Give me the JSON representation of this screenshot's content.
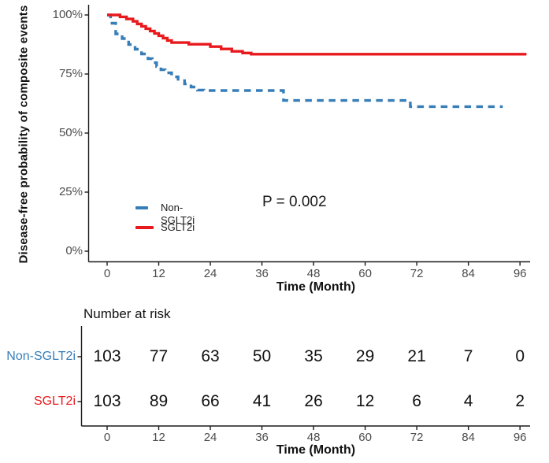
{
  "chart_data": {
    "type": "line",
    "subtype": "kaplan-meier-step",
    "title": "",
    "ylabel": "Disease-free probability of composite events",
    "xlabel": "Time (Month)",
    "annotation": "P = 0.002",
    "xlim": [
      0,
      96
    ],
    "ylim": [
      0,
      100
    ],
    "x_ticks": [
      0,
      12,
      24,
      36,
      48,
      60,
      72,
      84,
      96
    ],
    "y_tick_values": [
      100,
      75,
      50,
      25,
      0
    ],
    "y_tick_labels": [
      "100%",
      "75%",
      "50%",
      "25%",
      "0%"
    ],
    "grid": "off",
    "legend_position": "inside-bottom-left",
    "series": [
      {
        "name": "Non-SGLT2i",
        "color": "#377EB8",
        "line_style": "dashed",
        "steps": [
          [
            0,
            100
          ],
          [
            0.8,
            96.5
          ],
          [
            2,
            92
          ],
          [
            3.5,
            90
          ],
          [
            5,
            87.5
          ],
          [
            6.5,
            85.5
          ],
          [
            8,
            83.5
          ],
          [
            9.5,
            81.5
          ],
          [
            10.5,
            79.8
          ],
          [
            11.5,
            78.2
          ],
          [
            12.5,
            76.8
          ],
          [
            13.5,
            75.5
          ],
          [
            15,
            73.8
          ],
          [
            16.5,
            72.2
          ],
          [
            18,
            70.8
          ],
          [
            19.5,
            69.5
          ],
          [
            21,
            68.2
          ],
          [
            22.5,
            68
          ],
          [
            41,
            63.8
          ],
          [
            70.5,
            61.2
          ],
          [
            92,
            61.2
          ]
        ]
      },
      {
        "name": "SGLT2i",
        "color": "#E8191C",
        "line_style": "solid",
        "steps": [
          [
            0,
            100
          ],
          [
            3,
            99.2
          ],
          [
            4.5,
            98.3
          ],
          [
            6,
            97.3
          ],
          [
            7,
            96.2
          ],
          [
            8,
            95.2
          ],
          [
            9,
            94.2
          ],
          [
            10,
            93.2
          ],
          [
            11,
            92.2
          ],
          [
            12,
            91.2
          ],
          [
            13,
            90.2
          ],
          [
            14,
            89.2
          ],
          [
            15,
            88.3
          ],
          [
            19,
            87.6
          ],
          [
            24,
            86.6
          ],
          [
            26.5,
            85.6
          ],
          [
            29,
            84.6
          ],
          [
            31.5,
            83.9
          ],
          [
            33.5,
            83.4
          ],
          [
            97.5,
            83.4
          ]
        ]
      }
    ]
  },
  "risk_table": {
    "title": "Number at risk",
    "xlabel": "Time (Month)",
    "x_ticks": [
      0,
      12,
      24,
      36,
      48,
      60,
      72,
      84,
      96
    ],
    "rows": [
      {
        "label": "Non-SGLT2i",
        "color": "#377EB8",
        "values": [
          103,
          77,
          63,
          50,
          35,
          29,
          21,
          7,
          0
        ]
      },
      {
        "label": "SGLT2i",
        "color": "#E8191C",
        "values": [
          103,
          89,
          66,
          41,
          26,
          12,
          6,
          4,
          2
        ]
      }
    ]
  },
  "style_colors": {
    "axis_line": "#1a1a1a",
    "axis_text": "#4d4d4d",
    "title_text": "#111111"
  }
}
